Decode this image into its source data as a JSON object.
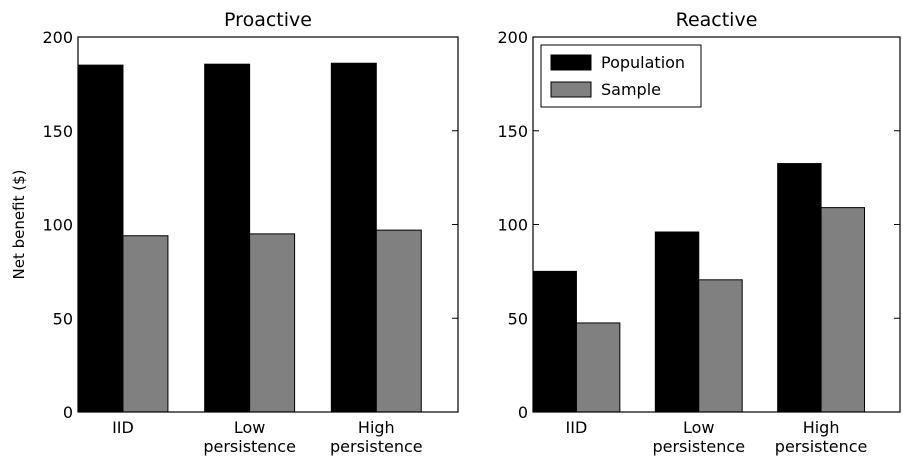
{
  "chart_data": [
    {
      "type": "bar",
      "title": "Proactive",
      "y_label": "Net benefit ($)",
      "categories": [
        "IID",
        "Low\npersistence",
        "High\npersistence"
      ],
      "series": [
        {
          "name": "Population",
          "color": "#000000",
          "values": [
            185,
            185.5,
            186
          ]
        },
        {
          "name": "Sample",
          "color": "#808080",
          "values": [
            94,
            95,
            97
          ]
        }
      ],
      "ylim": [
        0,
        200
      ],
      "yticks": [
        0,
        50,
        100,
        150,
        200
      ],
      "legend": false
    },
    {
      "type": "bar",
      "title": "Reactive",
      "categories": [
        "IID",
        "Low\npersistence",
        "High\npersistence"
      ],
      "series": [
        {
          "name": "Population",
          "color": "#000000",
          "values": [
            75,
            96,
            132.5
          ]
        },
        {
          "name": "Sample",
          "color": "#808080",
          "values": [
            47.5,
            70.5,
            109
          ]
        }
      ],
      "ylim": [
        0,
        200
      ],
      "yticks": [
        0,
        50,
        100,
        150,
        200
      ],
      "legend": "upper left"
    }
  ]
}
